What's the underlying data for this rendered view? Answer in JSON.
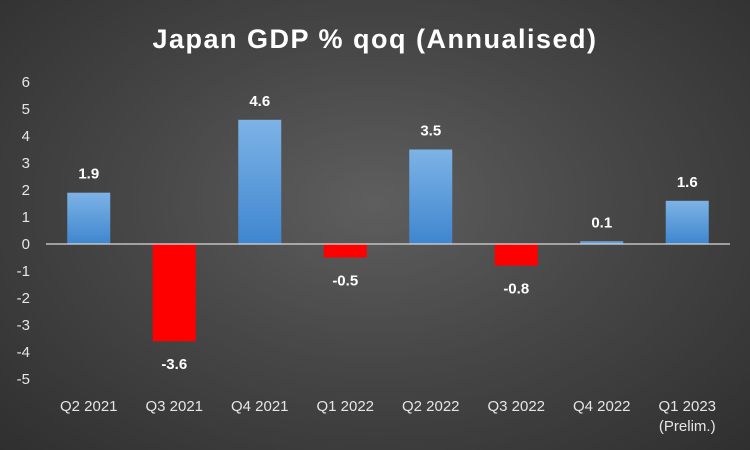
{
  "chart_data": {
    "type": "bar",
    "title": "Japan GDP % qoq (Annualised)",
    "categories": [
      [
        "Q2 2021"
      ],
      [
        "Q3 2021"
      ],
      [
        "Q4 2021"
      ],
      [
        "Q1 2022"
      ],
      [
        "Q2 2022"
      ],
      [
        "Q3 2022"
      ],
      [
        "Q4 2022"
      ],
      [
        "Q1 2023",
        "(Prelim.)"
      ]
    ],
    "values": [
      1.9,
      -3.6,
      4.6,
      -0.5,
      3.5,
      -0.8,
      0.1,
      1.6
    ],
    "data_labels": [
      "1.9",
      "-3.6",
      "4.6",
      "-0.5",
      "3.5",
      "-0.8",
      "0.1",
      "1.6"
    ],
    "ylim": [
      -5,
      6
    ],
    "yticks": [
      6,
      5,
      4,
      3,
      2,
      1,
      0,
      -1,
      -2,
      -3,
      -4,
      -5
    ],
    "xlabel": "",
    "ylabel": "",
    "grid": false,
    "legend": "none",
    "colors": {
      "positive_top": "#7db3e6",
      "positive_bottom": "#3f86cf",
      "negative": "#ff0000"
    }
  }
}
